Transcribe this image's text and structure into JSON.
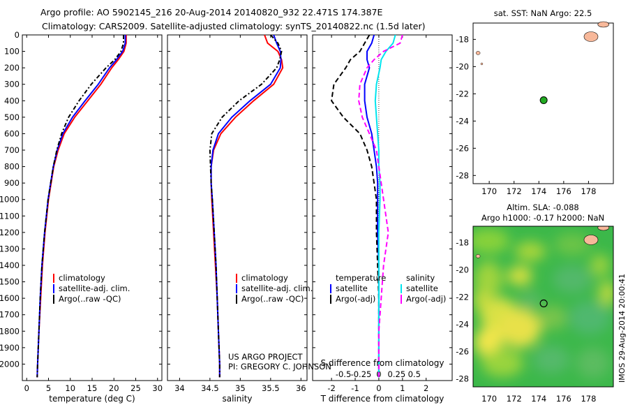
{
  "header": {
    "line1": "Argo profile: AO 5902145_216 20-Aug-2014 20140820_932 22.471S 174.387E",
    "line2": "Climatology: CARS2009. Satellite-adjusted climatology: synTS_20140822.nc (1.5d later)"
  },
  "colors": {
    "climatology": "#ff0000",
    "satellite": "#0000ff",
    "argo": "#000000",
    "sal_satellite": "#00e5ee",
    "sal_argo": "#ff00ff",
    "land": "#f7b89a",
    "float_marker": "#22aa22"
  },
  "chart_data": [
    {
      "type": "line",
      "xlabel": "temperature (deg C)",
      "ylabel": "",
      "xlim": [
        -1,
        31
      ],
      "ylim": [
        2100,
        0
      ],
      "x_ticks": [
        "0",
        "5",
        "10",
        "15",
        "20",
        "25",
        "30"
      ],
      "y_ticks": [
        "0",
        "100",
        "200",
        "300",
        "400",
        "500",
        "600",
        "700",
        "800",
        "900",
        "1000",
        "1100",
        "1200",
        "1300",
        "1400",
        "1500",
        "1600",
        "1700",
        "1800",
        "1900",
        "2000"
      ],
      "legend": [
        "climatology",
        "satellite-adj. clim.",
        "Argo(..raw -QC)"
      ],
      "depth": [
        0,
        50,
        100,
        150,
        200,
        300,
        400,
        500,
        600,
        700,
        800,
        900,
        1000,
        1200,
        1400,
        1600,
        1800,
        2000,
        2080
      ],
      "series": [
        {
          "name": "climatology",
          "x": [
            22.8,
            22.8,
            22.3,
            21.0,
            19.5,
            17.0,
            14.0,
            11.0,
            8.6,
            7.2,
            6.2,
            5.6,
            5.0,
            4.2,
            3.6,
            3.2,
            2.8,
            2.5,
            2.4
          ]
        },
        {
          "name": "satellite-adj. clim.",
          "x": [
            22.6,
            22.6,
            22.0,
            20.6,
            19.0,
            16.4,
            13.4,
            10.5,
            8.3,
            7.0,
            6.1,
            5.5,
            4.9,
            4.1,
            3.5,
            3.1,
            2.8,
            2.5,
            2.4
          ]
        },
        {
          "name": "Argo(..raw -QC)",
          "x": [
            22.2,
            22.2,
            21.6,
            20.2,
            18.2,
            14.8,
            12.0,
            9.6,
            8.0,
            6.9,
            6.1,
            5.5,
            4.9,
            4.1,
            3.5,
            3.1,
            2.8,
            2.5,
            2.4
          ]
        }
      ]
    },
    {
      "type": "line",
      "xlabel": "salinity",
      "ylabel": "",
      "xlim": [
        33.8,
        36.1
      ],
      "ylim": [
        2100,
        0
      ],
      "x_ticks": [
        "34",
        "34.5",
        "35",
        "35.5",
        "36"
      ],
      "legend": [
        "climatology",
        "satellite-adj. clim.",
        "Argo(..raw -QC)"
      ],
      "depth": [
        0,
        50,
        100,
        150,
        200,
        300,
        400,
        500,
        600,
        700,
        800,
        900,
        1000,
        1200,
        1400,
        1600,
        1800,
        2000,
        2080
      ],
      "series": [
        {
          "name": "climatology",
          "x": [
            35.4,
            35.45,
            35.62,
            35.68,
            35.7,
            35.55,
            35.22,
            34.92,
            34.68,
            34.56,
            34.52,
            34.52,
            34.53,
            34.56,
            34.59,
            34.62,
            34.64,
            34.66,
            34.66
          ]
        },
        {
          "name": "satellite-adj. clim.",
          "x": [
            35.55,
            35.6,
            35.66,
            35.67,
            35.66,
            35.5,
            35.16,
            34.86,
            34.64,
            34.55,
            34.52,
            34.52,
            34.54,
            34.57,
            34.6,
            34.62,
            34.64,
            34.66,
            34.66
          ]
        },
        {
          "name": "Argo(..raw -QC)",
          "x": [
            35.5,
            35.62,
            35.68,
            35.65,
            35.6,
            35.35,
            34.98,
            34.7,
            34.53,
            34.5,
            34.51,
            34.52,
            34.54,
            34.57,
            34.6,
            34.62,
            34.64,
            34.66,
            34.66
          ]
        }
      ],
      "annotation": [
        "US ARGO PROJECT",
        "PI: GREGORY C. JOHNSON"
      ]
    },
    {
      "type": "line",
      "xlabel": "T difference from climatology",
      "xlabel_secondary": "S difference from climatology",
      "xlim": [
        -2.8,
        3.1
      ],
      "ylim": [
        2100,
        0
      ],
      "x_ticks": [
        "-2",
        "-1",
        "0",
        "1",
        "2"
      ],
      "x_ticks_secondary": [
        "-0.5",
        "-0.25",
        "0",
        "0.25",
        "0.5"
      ],
      "legend_groups": [
        {
          "title": "temperature",
          "items": [
            "satellite",
            "Argo(-adj)"
          ]
        },
        {
          "title": "salinity",
          "items": [
            "satellite",
            "Argo(-adj)"
          ]
        }
      ],
      "depth": [
        0,
        50,
        100,
        150,
        200,
        300,
        400,
        500,
        600,
        700,
        800,
        900,
        1000,
        1200,
        1400,
        1600,
        1800,
        2000,
        2080
      ],
      "series": [
        {
          "name": "temperature satellite",
          "x": [
            -0.2,
            -0.3,
            -0.5,
            -0.5,
            -0.4,
            -0.6,
            -0.6,
            -0.5,
            -0.3,
            -0.2,
            -0.1,
            -0.05,
            -0.05,
            -0.05,
            0,
            0,
            0,
            0,
            0
          ]
        },
        {
          "name": "temperature Argo(-adj)",
          "x": [
            -0.4,
            -0.6,
            -0.8,
            -1.2,
            -1.4,
            -1.9,
            -2.0,
            -1.5,
            -0.8,
            -0.5,
            -0.3,
            -0.2,
            -0.1,
            -0.1,
            -0.05,
            0,
            0,
            0,
            0
          ]
        },
        {
          "name": "salinity satellite",
          "x": [
            0.7,
            0.6,
            0.3,
            0.1,
            0.05,
            -0.1,
            -0.15,
            -0.1,
            -0.05,
            0,
            0,
            0.05,
            0.05,
            0,
            0,
            0,
            0,
            0,
            0
          ]
        },
        {
          "name": "salinity Argo(-adj)",
          "x": [
            1.0,
            0.9,
            0.2,
            -0.2,
            -0.5,
            -0.8,
            -0.85,
            -0.7,
            -0.4,
            -0.1,
            0,
            0.1,
            0.2,
            0.4,
            0.2,
            0.1,
            0,
            0,
            0
          ]
        }
      ]
    },
    {
      "type": "scatter",
      "title": "sat. SST: NaN Argo: 22.5",
      "xlim": [
        168.7,
        180
      ],
      "ylim": [
        -28.6,
        -16.8
      ],
      "x_ticks": [],
      "y_ticks": [
        "-18",
        "-20",
        "-22",
        "-24",
        "-26",
        "-28"
      ],
      "points": [
        {
          "lon": 174.387,
          "lat": -22.471
        }
      ]
    },
    {
      "type": "heatmap",
      "title_line1": "Altim. SLA: -0.088",
      "title_line2": "Argo h1000: -0.17 h2000: NaN",
      "xlim": [
        168.7,
        180
      ],
      "ylim": [
        -28.6,
        -16.8
      ],
      "x_ticks": [
        "170",
        "172",
        "174",
        "176",
        "178"
      ],
      "y_ticks": [
        "-18",
        "-20",
        "-22",
        "-24",
        "-26",
        "-28"
      ],
      "points": [
        {
          "lon": 174.387,
          "lat": -22.471
        }
      ],
      "side_label": "IMOS 29-Aug-2014 20:00:41"
    }
  ]
}
